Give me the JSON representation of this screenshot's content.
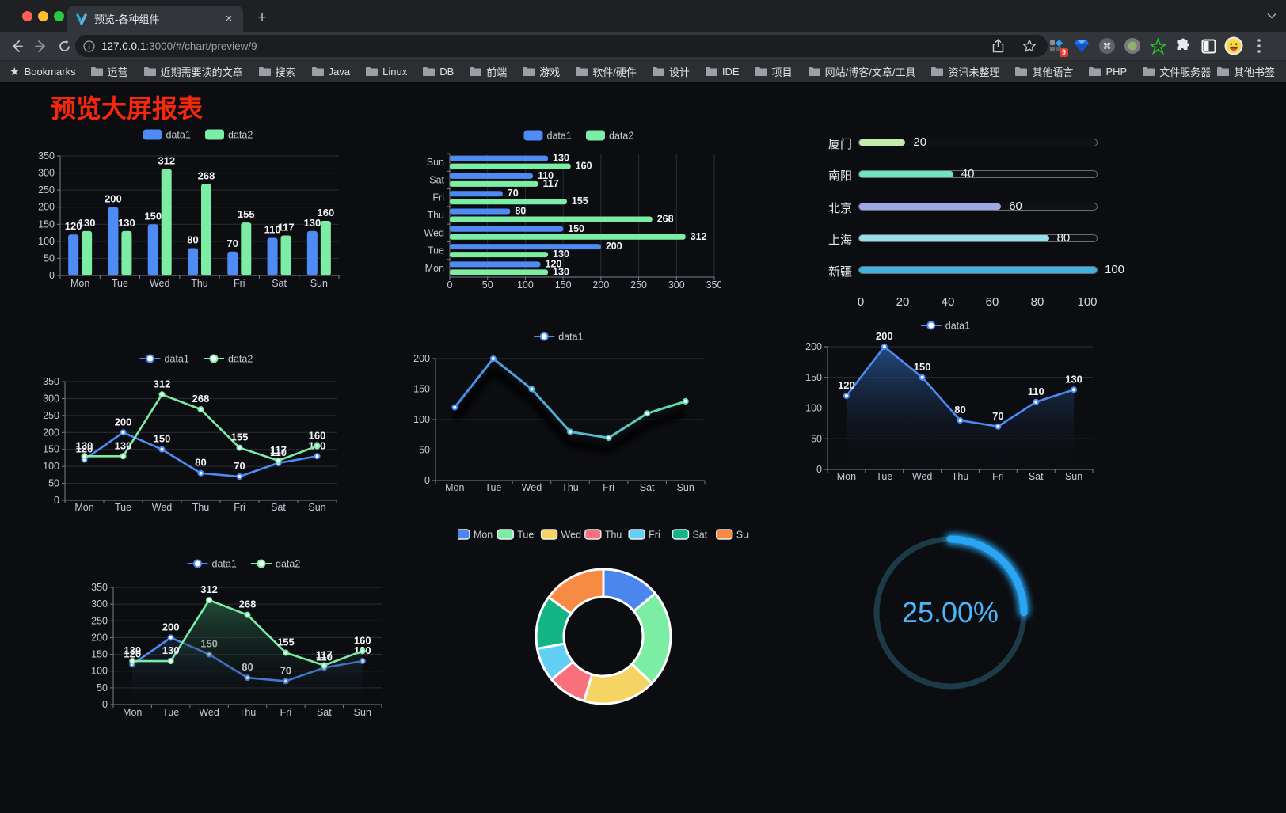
{
  "browser": {
    "traffic_lights": [
      "#ff5f57",
      "#febc2e",
      "#28c840"
    ],
    "tab": {
      "title": "预览-各种组件",
      "close": "×",
      "new_tab": "+"
    },
    "url": {
      "host": "127.0.0.1",
      "rest": ":3000/#/chart/preview/9"
    },
    "bookmarks_bar": {
      "star_label": "Bookmarks",
      "items": [
        "运营",
        "近期需要读的文章",
        "搜索",
        "Java",
        "Linux",
        "DB",
        "前端",
        "游戏",
        "软件/硬件",
        "设计",
        "IDE",
        "项目",
        "网站/博客/文章/工具",
        "资讯未整理",
        "其他语言",
        "PHP",
        "文件服务器"
      ],
      "overflow": "»",
      "other_bookmarks": "其他书签"
    },
    "extensions": {
      "badge": "9",
      "icons": [
        "screenshot-extension-icon",
        "gem-extension-icon",
        "command-extension-icon",
        "recorder-extension-icon",
        "star-extension-icon",
        "puzzle-extensions-icon",
        "darkmode-extension-icon",
        "emoji-avatar",
        "menu-dots-icon"
      ]
    }
  },
  "page": {
    "title": "预览大屏报表",
    "title_color": "#f5270d"
  },
  "chart_data": [
    {
      "id": "bar-grouped",
      "type": "bar",
      "legend_position": "top",
      "grid": true,
      "categories": [
        "Mon",
        "Tue",
        "Wed",
        "Thu",
        "Fri",
        "Sat",
        "Sun"
      ],
      "series": [
        {
          "name": "data1",
          "color": "#4E8BF5",
          "values": [
            120,
            200,
            150,
            80,
            70,
            110,
            130
          ]
        },
        {
          "name": "data2",
          "color": "#7CEDA5",
          "values": [
            130,
            130,
            312,
            268,
            155,
            117,
            160
          ]
        }
      ],
      "ylim": [
        0,
        350
      ],
      "ytick_step": 50
    },
    {
      "id": "bar-horizontal",
      "type": "bar",
      "orientation": "horizontal",
      "legend_position": "top",
      "grid": true,
      "categories": [
        "Mon",
        "Tue",
        "Wed",
        "Thu",
        "Fri",
        "Sat",
        "Sun"
      ],
      "series": [
        {
          "name": "data1",
          "color": "#4E8BF5",
          "values": [
            120,
            200,
            150,
            80,
            70,
            110,
            130
          ]
        },
        {
          "name": "data2",
          "color": "#7CEDA5",
          "values": [
            130,
            130,
            312,
            268,
            155,
            117,
            160
          ]
        }
      ],
      "xlim": [
        0,
        350
      ],
      "xtick_step": 50
    },
    {
      "id": "progress-bars",
      "type": "bar",
      "subtype": "progress",
      "items": [
        {
          "label": "厦门",
          "value": 20,
          "color": "#c4ebad"
        },
        {
          "label": "南阳",
          "value": 40,
          "color": "#6be6c1"
        },
        {
          "label": "北京",
          "value": 60,
          "color": "#a0a7e6"
        },
        {
          "label": "上海",
          "value": 80,
          "color": "#96dee8"
        },
        {
          "label": "新疆",
          "value": 100,
          "color": "#3fb1e3"
        }
      ],
      "xlim": [
        0,
        100
      ],
      "xticks": [
        0,
        20,
        40,
        60,
        80,
        100
      ]
    },
    {
      "id": "line-two",
      "type": "line",
      "legend_position": "top",
      "grid": true,
      "point_labels": true,
      "categories": [
        "Mon",
        "Tue",
        "Wed",
        "Thu",
        "Fri",
        "Sat",
        "Sun"
      ],
      "series": [
        {
          "name": "data1",
          "color": "#4E8BF5",
          "values": [
            120,
            200,
            150,
            80,
            70,
            110,
            130
          ]
        },
        {
          "name": "data2",
          "color": "#7CEDA5",
          "values": [
            130,
            130,
            312,
            268,
            155,
            117,
            160
          ]
        }
      ],
      "ylim": [
        0,
        350
      ],
      "ytick_step": 50
    },
    {
      "id": "line-gradient",
      "type": "line",
      "legend_position": "top",
      "grid": true,
      "point_labels": false,
      "categories": [
        "Mon",
        "Tue",
        "Wed",
        "Thu",
        "Fri",
        "Sat",
        "Sun"
      ],
      "series": [
        {
          "name": "data1",
          "color": "#4E8BF5",
          "gradient": [
            "#4285F4",
            "#62E6A8"
          ],
          "values": [
            120,
            200,
            150,
            80,
            70,
            110,
            130
          ]
        }
      ],
      "ylim": [
        0,
        200
      ],
      "ytick_step": 50
    },
    {
      "id": "area-single",
      "type": "area",
      "legend_position": "top",
      "grid": true,
      "point_labels": true,
      "categories": [
        "Mon",
        "Tue",
        "Wed",
        "Thu",
        "Fri",
        "Sat",
        "Sun"
      ],
      "series": [
        {
          "name": "data1",
          "color": "#4E8BF5",
          "area_top": "rgba(45,95,165,0.75)",
          "values": [
            120,
            200,
            150,
            80,
            70,
            110,
            130
          ]
        }
      ],
      "ylim": [
        0,
        200
      ],
      "ytick_step": 50
    },
    {
      "id": "area-two",
      "type": "area",
      "legend_position": "top",
      "grid": true,
      "point_labels": true,
      "categories": [
        "Mon",
        "Tue",
        "Wed",
        "Thu",
        "Fri",
        "Sat",
        "Sun"
      ],
      "series": [
        {
          "name": "data1",
          "color": "#4E8BF5",
          "area_top": "rgba(45,95,165,0.70)",
          "values": [
            120,
            200,
            150,
            80,
            70,
            110,
            130
          ]
        },
        {
          "name": "data2",
          "color": "#7CEDA5",
          "area_top": "rgba(47,115,82,0.78)",
          "values": [
            130,
            130,
            312,
            268,
            155,
            117,
            160
          ]
        }
      ],
      "ylim": [
        0,
        350
      ],
      "ytick_step": 50
    },
    {
      "id": "donut",
      "type": "pie",
      "legend_position": "top",
      "labels": [
        "Mon",
        "Tue",
        "Wed",
        "Thu",
        "Fri",
        "Sat",
        "Sun"
      ],
      "values": [
        120,
        200,
        150,
        80,
        70,
        110,
        130
      ],
      "colors": [
        "#4A86EE",
        "#7BEEA4",
        "#F6D464",
        "#F9707D",
        "#64CFF5",
        "#12B583",
        "#F78B44"
      ]
    },
    {
      "id": "gauge",
      "type": "gauge",
      "value": 25,
      "max": 100,
      "display": "25.00%",
      "bar_color": "#2AA5F4",
      "track_color": "#1d3b46",
      "text_color": "#4DB4F7"
    }
  ]
}
